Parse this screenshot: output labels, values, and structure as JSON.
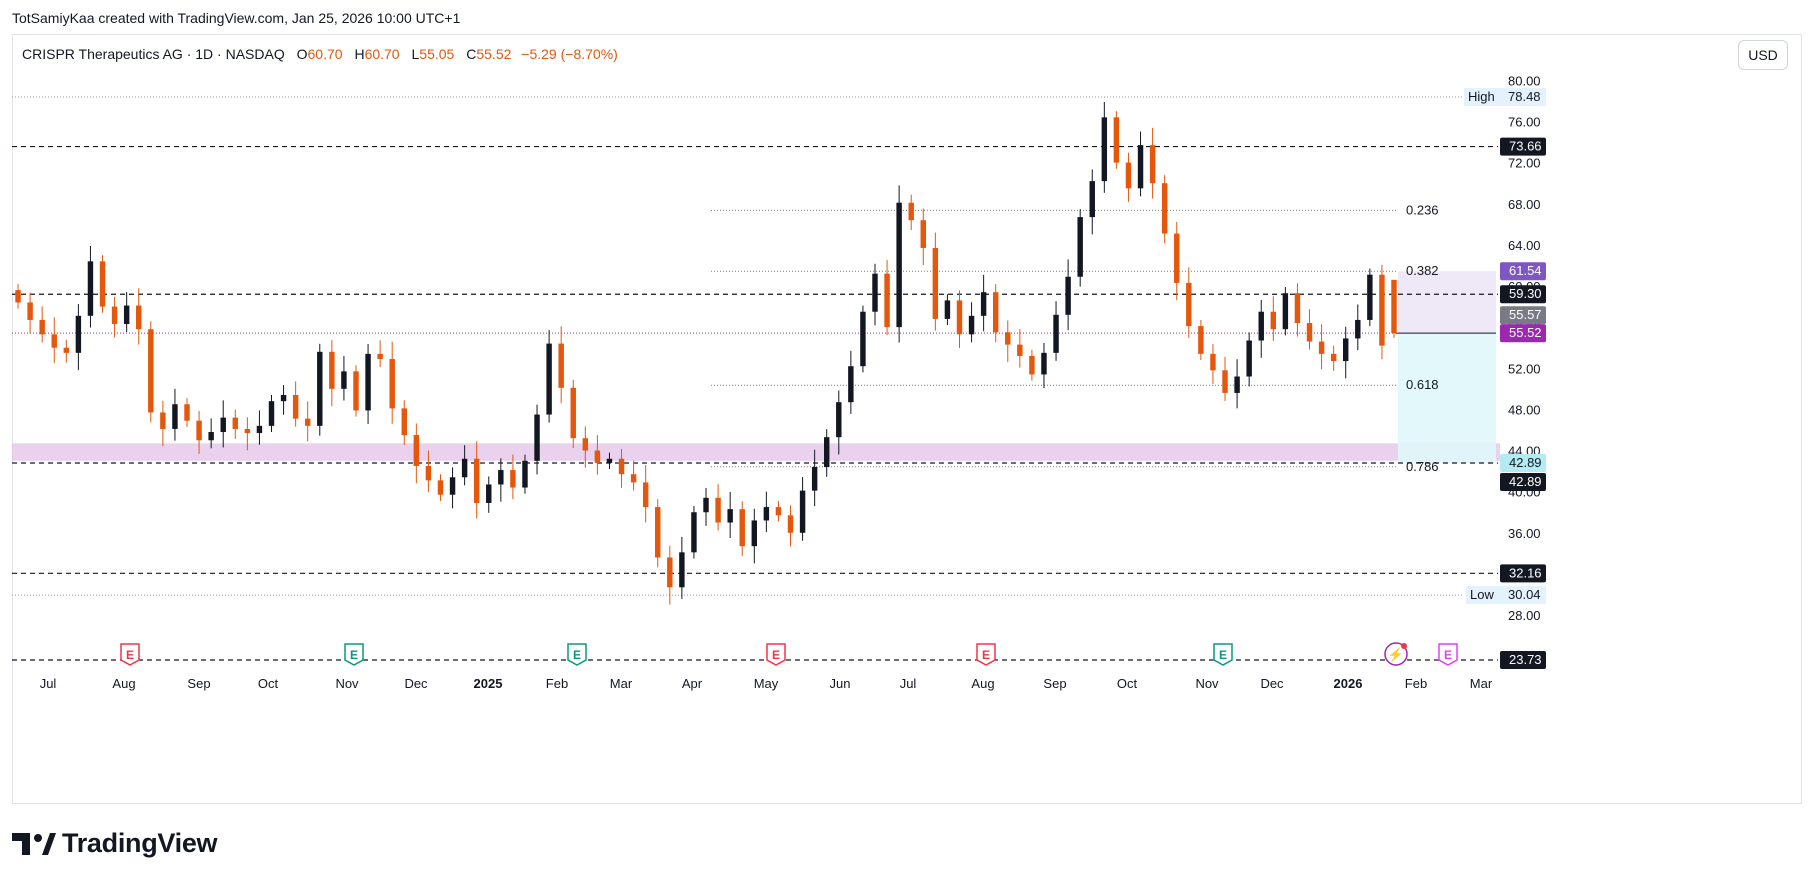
{
  "header": {
    "credit": "TotSamiyKaa created with TradingView.com, Jan 25, 2026 10:00 UTC+1",
    "symbol": "CRISPR Therapeutics AG · 1D · NASDAQ",
    "o_label": "O",
    "o_value": "60.70",
    "h_label": "H",
    "h_value": "60.70",
    "l_label": "L",
    "l_value": "55.05",
    "c_label": "C",
    "c_value": "55.52",
    "change": "−5.29 (−8.70%)"
  },
  "currency": "USD",
  "brand": {
    "name": "TradingView",
    "icon": "tradingview-logo-icon"
  },
  "colors": {
    "up": "#131722",
    "down": "#e4570d",
    "accent": "#9c27b0",
    "support_zone": "#e1bee7",
    "projection_zone": "#e0f7fa",
    "hl_box": "#e3f2fd"
  },
  "chart_data": {
    "type": "candlestick",
    "ylim": [
      23.73,
      80.6
    ],
    "y_ticks": [
      "80.00",
      "76.00",
      "72.00",
      "68.00",
      "64.00",
      "60.00",
      "56.00",
      "52.00",
      "48.00",
      "44.00",
      "40.00",
      "36.00",
      "32.00",
      "28.00"
    ],
    "x_labels": [
      {
        "label": "Jul",
        "bold": false
      },
      {
        "label": "Aug",
        "bold": false
      },
      {
        "label": "Sep",
        "bold": false
      },
      {
        "label": "Oct",
        "bold": false
      },
      {
        "label": "Nov",
        "bold": false
      },
      {
        "label": "Dec",
        "bold": false
      },
      {
        "label": "2025",
        "bold": true
      },
      {
        "label": "Feb",
        "bold": false
      },
      {
        "label": "Mar",
        "bold": false
      },
      {
        "label": "Apr",
        "bold": false
      },
      {
        "label": "May",
        "bold": false
      },
      {
        "label": "Jun",
        "bold": false
      },
      {
        "label": "Jul",
        "bold": false
      },
      {
        "label": "Aug",
        "bold": false
      },
      {
        "label": "Sep",
        "bold": false
      },
      {
        "label": "Oct",
        "bold": false
      },
      {
        "label": "Nov",
        "bold": false
      },
      {
        "label": "Dec",
        "bold": false
      },
      {
        "label": "2026",
        "bold": true
      },
      {
        "label": "Feb",
        "bold": false
      },
      {
        "label": "Mar",
        "bold": false
      }
    ],
    "closes": [
      58.5,
      56.8,
      55.4,
      54.1,
      53.6,
      57.2,
      62.5,
      58.1,
      56.4,
      58.2,
      55.9,
      47.8,
      46.2,
      48.6,
      47.0,
      45.1,
      45.9,
      47.3,
      46.2,
      45.8,
      46.5,
      48.9,
      49.5,
      47.2,
      46.5,
      53.7,
      50.1,
      51.8,
      48.0,
      53.5,
      53.0,
      48.2,
      45.6,
      42.6,
      41.2,
      39.8,
      41.5,
      43.3,
      39.0,
      40.8,
      42.2,
      40.5,
      43.1,
      47.6,
      54.5,
      50.2,
      45.3,
      44.1,
      42.9,
      43.3,
      41.8,
      41.0,
      38.6,
      33.7,
      30.8,
      34.2,
      38.1,
      39.5,
      37.1,
      38.4,
      34.8,
      37.3,
      38.6,
      37.8,
      36.1,
      40.2,
      42.5,
      45.4,
      48.8,
      52.3,
      57.6,
      61.3,
      56.1,
      68.2,
      66.5,
      63.8,
      56.9,
      58.7,
      55.4,
      57.2,
      59.5,
      55.6,
      54.4,
      53.3,
      51.5,
      53.6,
      57.3,
      61.0,
      66.8,
      70.3,
      76.5,
      72.1,
      69.6,
      73.8,
      70.1,
      65.2,
      60.4,
      56.2,
      53.5,
      51.9,
      49.7,
      51.3,
      54.8,
      57.6,
      55.9,
      59.4,
      56.5,
      54.7,
      53.5,
      52.8,
      55.0,
      56.8,
      61.2,
      54.3,
      55.52
    ],
    "open": 60.7,
    "high": 60.7,
    "low": 55.05,
    "close": 55.52,
    "high_marker": {
      "label": "High",
      "value": "78.48"
    },
    "low_marker": {
      "label": "Low",
      "value": "30.04"
    },
    "hlines": [
      "73.66",
      "59.30",
      "42.89",
      "32.16",
      "23.73"
    ],
    "fib_levels": [
      {
        "label": "0.236",
        "value": 67.45
      },
      {
        "label": "0.382",
        "value": 61.54
      },
      {
        "label": "0.618",
        "value": 50.45
      },
      {
        "label": "0.786",
        "value": 42.52
      }
    ],
    "price_labels": [
      {
        "value": "61.54",
        "kind": "purple"
      },
      {
        "value": "59.30",
        "kind": "black"
      },
      {
        "value": "55.57",
        "kind": "gray"
      },
      {
        "value": "55.52",
        "kind": "purple"
      },
      {
        "value": "42.89",
        "kind": "cyan"
      },
      {
        "value": "42.89",
        "kind": "black"
      }
    ],
    "support_zone": [
      43.1,
      44.8
    ],
    "current_price": 55.52,
    "earnings_markers": [
      {
        "label": "E",
        "kind": "red"
      },
      {
        "label": "E",
        "kind": "green"
      },
      {
        "label": "E",
        "kind": "green"
      },
      {
        "label": "E",
        "kind": "red"
      },
      {
        "label": "E",
        "kind": "red"
      },
      {
        "label": "E",
        "kind": "green"
      },
      {
        "label": "E",
        "kind": "magenta"
      }
    ],
    "events": [
      {
        "label": "⚡",
        "kind": "flash"
      }
    ],
    "grid": false,
    "legend": "top-left"
  }
}
